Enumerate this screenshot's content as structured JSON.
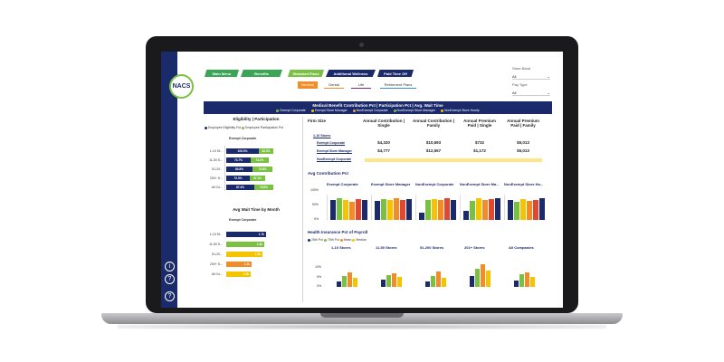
{
  "logo": "NACS",
  "nav": {
    "tabs": [
      "Main Menu",
      "Benefits",
      "Standard Plans",
      "Additional Wellness",
      "Paid Time Off"
    ],
    "subtabs": [
      "Medical",
      "Dental",
      "Life",
      "Retirement Plans"
    ]
  },
  "filters": {
    "store_band_label": "Store Band",
    "store_band_value": "All",
    "pay_type_label": "Pay Type",
    "pay_type_value": "All"
  },
  "banner": {
    "title": "Medical Benefit Contribution Pct | Participation Pct | Avg. Wait Time",
    "legend": [
      {
        "label": "Exempt Corporate",
        "color": "#7ac143"
      },
      {
        "label": "Exempt Store Manager",
        "color": "#f5c400"
      },
      {
        "label": "NonExempt Corporate",
        "color": "#e8a33d"
      },
      {
        "label": "NonExempt Store Manager",
        "color": "#7ac143"
      },
      {
        "label": "NonExempt Store Hourly",
        "color": "#f5c400"
      }
    ]
  },
  "eligibility": {
    "title": "Eligibility | Participation",
    "legend": [
      "Employee Eligibility Pct",
      "Employee Participation Pct"
    ],
    "group": "Exempt Corporate",
    "rows": [
      {
        "label": "1-10 St...",
        "a": "100.0%",
        "b": "82.3%"
      },
      {
        "label": "11-50 S...",
        "a": "74.7%",
        "b": "74.2%"
      },
      {
        "label": "51-20...",
        "a": "80.8%",
        "b": "73.6%"
      },
      {
        "label": "200+ S...",
        "a": "72.3%",
        "b": "57.1%"
      },
      {
        "label": "All Co...",
        "a": "87.4%",
        "b": "79.8%"
      }
    ]
  },
  "wait": {
    "title": "Avg Wait Time by Month",
    "group": "Exempt Corporate",
    "rows": [
      {
        "label": "1-10 St...",
        "v": "1.7k"
      },
      {
        "label": "11-50 S...",
        "v": "1.6k"
      },
      {
        "label": "51-20...",
        "v": "1.5k"
      },
      {
        "label": "200+ S...",
        "v": "1.1k"
      },
      {
        "label": "All Co...",
        "v": "1.0k"
      }
    ]
  },
  "table": {
    "headers": [
      "Firm Size",
      "Annual Contribution | Single",
      "Annual Contribution | Family",
      "Annual Premium Paid | Single",
      "Annual Premium Paid | Family"
    ],
    "group": "1-10 Stores",
    "rows": [
      {
        "label": "Exempt Corporate",
        "v": [
          "$4,320",
          "$10,693",
          "$732",
          "$5,013"
        ]
      },
      {
        "label": "Exempt Store Manager",
        "v": [
          "$4,777",
          "$12,557",
          "$1,172",
          "$5,013"
        ]
      },
      {
        "label": "NonExempt Corporate",
        "v": [
          "",
          "",
          "",
          ""
        ]
      }
    ]
  },
  "avg_contrib": {
    "title": "Avg Contribution Pct",
    "yticks": [
      "100%",
      "50%",
      "0%"
    ],
    "panels": [
      "Exempt Corporate",
      "Exempt Store Manager",
      "NonExempt Corporate",
      "NonExempt Store Ma...",
      "NonExempt Store Ho..."
    ]
  },
  "health": {
    "title": "Health Insurance Pct of Payroll",
    "legend": [
      "25th Pct",
      "75th Pct",
      "Mean",
      "Median"
    ],
    "yticks": [
      "10%",
      "5%",
      "0%"
    ],
    "panels": [
      "1-10 Stores",
      "11-50 Stores",
      "51-200 Stores",
      "201+ Stores",
      "All Companies"
    ]
  },
  "colors": {
    "navy": "#1b2a6b",
    "green": "#7ac143",
    "yellow": "#f5c400",
    "orange": "#f28c28",
    "red": "#e2482f"
  }
}
